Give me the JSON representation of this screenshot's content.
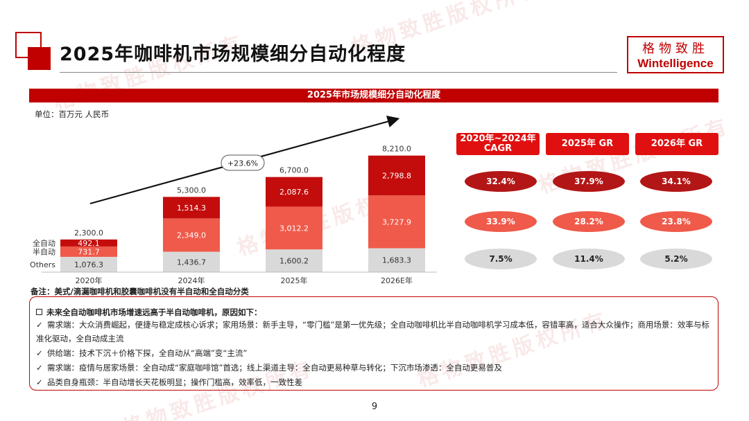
{
  "header": {
    "title": "2025年咖啡机市场规模细分自动化程度",
    "logo_cn": "格物致胜",
    "logo_en": "Wintelligence",
    "watermark": "格物致胜版权所有"
  },
  "chart_header": "2025年市场规模细分自动化程度",
  "unit": "单位：百万元 人民币",
  "colors": {
    "brand_red": "#c00000",
    "full_auto": "#c30d0d",
    "semi_auto": "#ef5a4a",
    "others": "#d9d9d9"
  },
  "chart_data": {
    "type": "bar",
    "stacked": true,
    "categories": [
      "2020年",
      "2024年",
      "2025年",
      "2026E年"
    ],
    "series": [
      {
        "name": "Others",
        "values": [
          1076.3,
          1436.7,
          1600.2,
          1683.3
        ]
      },
      {
        "name": "半自动",
        "values": [
          731.7,
          2349.0,
          3012.2,
          3727.9
        ]
      },
      {
        "name": "全自动",
        "values": [
          492.1,
          1514.3,
          2087.6,
          2798.8
        ]
      }
    ],
    "value_labels": {
      "Others": [
        "1,076.3",
        "1,436.7",
        "1,600.2",
        "1,683.3"
      ],
      "半自动": [
        "731.7",
        "2,349.0",
        "3,012.2",
        "3,727.9"
      ],
      "全自动": [
        "492.1",
        "1,514.3",
        "2,087.6",
        "2,798.8"
      ]
    },
    "totals": [
      "2,300.0",
      "5,300.0",
      "6,700.0",
      "8,210.0"
    ],
    "total_values": [
      2300.0,
      5300.0,
      6700.0,
      8210.0
    ],
    "annotation": "+23.6%",
    "legend": "left",
    "grid": false
  },
  "growth_table": {
    "headers": [
      "2020年~2024年 CAGR",
      "2025年 GR",
      "2026年 GR"
    ],
    "rows": [
      {
        "series": "全自动",
        "values": [
          "32.4%",
          "37.9%",
          "34.1%"
        ]
      },
      {
        "series": "半自动",
        "values": [
          "33.9%",
          "28.2%",
          "23.8%"
        ]
      },
      {
        "series": "Others",
        "values": [
          "7.5%",
          "11.4%",
          "5.2%"
        ]
      }
    ]
  },
  "note": "备注：美式/滴漏咖啡机和胶囊咖啡机没有半自动和全自动分类",
  "reasons": {
    "title": "未来全自动咖啡机市场增速远高于半自动咖啡机，原因如下：",
    "items": [
      "需求端：大众消费崛起，便捷与稳定成核心诉求；家用场景：新手主导，“零门槛”是第一优先级；全自动咖啡机比半自动咖啡机学习成本低，容错率高，适合大众操作；商用场景：效率与标准化驱动，全自动成主流",
      "供给端：技术下沉＋价格下探，全自动从“高端”变“主流”",
      "需求端：疫情与居家场景：全自动成“家庭咖啡馆”首选；线上渠道主导：全自动更易种草与转化；下沉市场渗透：全自动更易普及",
      "品类自身瓶颈：半自动增长天花板明显；操作门槛高，效率低，一致性差"
    ]
  },
  "page_number": "9"
}
